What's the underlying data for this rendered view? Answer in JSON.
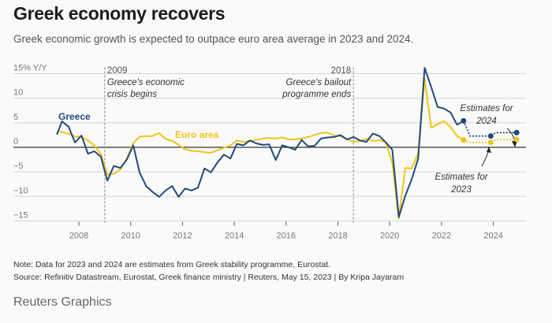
{
  "header": {
    "title": "Greek economy recovers",
    "subtitle": "Greek economic growth is expected to outpace euro area average in 2023 and 2024."
  },
  "footer": {
    "note": "Note: Data for 2023 and 2024 are estimates from Greek stability programme, Eurostat.",
    "source": "Source: Refinitiv Datastream, Eurostat, Greek finance ministry | Reuters, May 15, 2023 | By Kripa Jayaram",
    "brand": "Reuters Graphics"
  },
  "colors": {
    "greece": "#1f4a7c",
    "euro": "#f0c419",
    "grid": "#d6d6d6",
    "zero": "#333333",
    "text": "#777777"
  },
  "chart_data": {
    "type": "line",
    "title": "Greek economy recovers",
    "ylabel": "15% Y/Y",
    "xlabel": "",
    "ylim": [
      -15,
      15
    ],
    "xlim": [
      2006.9,
      2025.1
    ],
    "grid": true,
    "y_ticks": [
      15,
      10,
      5,
      0,
      -5,
      -10,
      -15
    ],
    "y_tick_labels": [
      "15% Y/Y",
      "10",
      "5",
      "0",
      "−5",
      "−10",
      "−15"
    ],
    "x_ticks": [
      2008,
      2010,
      2012,
      2014,
      2016,
      2018,
      2020,
      2022,
      2024
    ],
    "x_tick_labels": [
      "2008",
      "2010",
      "2012",
      "2014",
      "2016",
      "2018",
      "2020",
      "2022",
      "2024"
    ],
    "series": [
      {
        "name": "Greece",
        "label": "Greece",
        "x": [
          2007.15,
          2007.35,
          2007.6,
          2007.85,
          2008.1,
          2008.35,
          2008.6,
          2008.85,
          2009.1,
          2009.35,
          2009.6,
          2009.85,
          2010.1,
          2010.35,
          2010.6,
          2010.85,
          2011.1,
          2011.35,
          2011.6,
          2011.85,
          2012.1,
          2012.35,
          2012.6,
          2012.85,
          2013.1,
          2013.35,
          2013.6,
          2013.85,
          2014.1,
          2014.35,
          2014.6,
          2014.85,
          2015.1,
          2015.35,
          2015.6,
          2015.85,
          2016.1,
          2016.35,
          2016.6,
          2016.85,
          2017.1,
          2017.35,
          2017.6,
          2017.85,
          2018.1,
          2018.35,
          2018.6,
          2018.85,
          2019.1,
          2019.35,
          2019.6,
          2019.85,
          2020.1,
          2020.35,
          2020.6,
          2020.85,
          2021.1,
          2021.35,
          2021.6,
          2021.85,
          2022.1,
          2022.35,
          2022.6,
          2022.85
        ],
        "values": [
          2.6,
          5.3,
          4.2,
          1.0,
          2.4,
          -1.3,
          -0.8,
          -1.9,
          -6.8,
          -3.8,
          -4.2,
          -2.5,
          0.4,
          -5.2,
          -7.9,
          -9.1,
          -10.1,
          -8.8,
          -7.9,
          -10.1,
          -8.4,
          -8.8,
          -8.2,
          -4.3,
          -5.1,
          -3.1,
          -1.5,
          -2.3,
          0.7,
          0.4,
          1.4,
          0.8,
          0.5,
          0.6,
          -2.6,
          0.4,
          0.0,
          -0.5,
          1.5,
          0.2,
          0.3,
          1.8,
          2.0,
          2.1,
          2.5,
          1.6,
          2.1,
          1.4,
          1.1,
          2.8,
          2.3,
          1.0,
          -0.5,
          -14.2,
          -9.9,
          -6.5,
          -2.3,
          16.2,
          12.3,
          8.2,
          7.9,
          7.1,
          4.6,
          5.4
        ],
        "estimates": [
          {
            "label": "2022",
            "x": 2022.85,
            "value": 5.4
          },
          {
            "label": "2023",
            "x": 2023.9,
            "value": 2.3
          },
          {
            "label": "2024",
            "x": 2024.9,
            "value": 3.0
          }
        ]
      },
      {
        "name": "Euro area",
        "label": "Euro area",
        "x": [
          2007.15,
          2007.35,
          2007.6,
          2007.85,
          2008.1,
          2008.35,
          2008.6,
          2008.85,
          2009.1,
          2009.35,
          2009.6,
          2009.85,
          2010.1,
          2010.35,
          2010.6,
          2010.85,
          2011.1,
          2011.35,
          2011.6,
          2011.85,
          2012.1,
          2012.35,
          2012.6,
          2012.85,
          2013.1,
          2013.35,
          2013.6,
          2013.85,
          2014.1,
          2014.35,
          2014.6,
          2014.85,
          2015.1,
          2015.35,
          2015.6,
          2015.85,
          2016.1,
          2016.35,
          2016.6,
          2016.85,
          2017.1,
          2017.35,
          2017.6,
          2017.85,
          2018.1,
          2018.35,
          2018.6,
          2018.85,
          2019.1,
          2019.35,
          2019.6,
          2019.85,
          2020.1,
          2020.35,
          2020.6,
          2020.85,
          2021.1,
          2021.35,
          2021.6,
          2021.85,
          2022.1,
          2022.35,
          2022.6,
          2022.85
        ],
        "values": [
          3.3,
          3.1,
          2.8,
          2.2,
          2.1,
          1.4,
          0.4,
          -1.4,
          -5.5,
          -5.4,
          -4.5,
          -2.3,
          0.9,
          2.2,
          2.3,
          2.3,
          2.9,
          1.7,
          1.3,
          0.5,
          -0.4,
          -0.7,
          -0.8,
          -1.0,
          -1.1,
          -0.6,
          -0.1,
          0.4,
          1.4,
          1.1,
          1.3,
          1.5,
          1.8,
          1.9,
          1.8,
          2.0,
          1.6,
          1.6,
          1.8,
          2.1,
          2.5,
          2.9,
          3.0,
          2.4,
          2.3,
          1.6,
          1.1,
          1.3,
          1.7,
          1.3,
          1.5,
          1.0,
          -3.2,
          -14.5,
          -4.2,
          -4.3,
          -1.2,
          14.0,
          4.0,
          4.7,
          5.3,
          4.1,
          2.3,
          1.5
        ],
        "estimates": [
          {
            "label": "2022",
            "x": 2022.85,
            "value": 1.5
          },
          {
            "label": "2023",
            "x": 2023.9,
            "value": 1.0
          },
          {
            "label": "2024",
            "x": 2024.9,
            "value": 1.6
          }
        ]
      }
    ],
    "annotations": [
      {
        "year_label": "2009",
        "x": 2009.0,
        "text_lines": [
          "Greece's economic",
          "crisis begins"
        ]
      },
      {
        "year_label": "2018",
        "x": 2018.6,
        "text_lines": [
          "Greece's bailout",
          "programme ends"
        ]
      },
      {
        "text_lines": [
          "Estimates for",
          "2024"
        ],
        "points_to": "2024"
      },
      {
        "text_lines": [
          "Estimates for",
          "2023"
        ],
        "points_to": "2023"
      }
    ]
  }
}
